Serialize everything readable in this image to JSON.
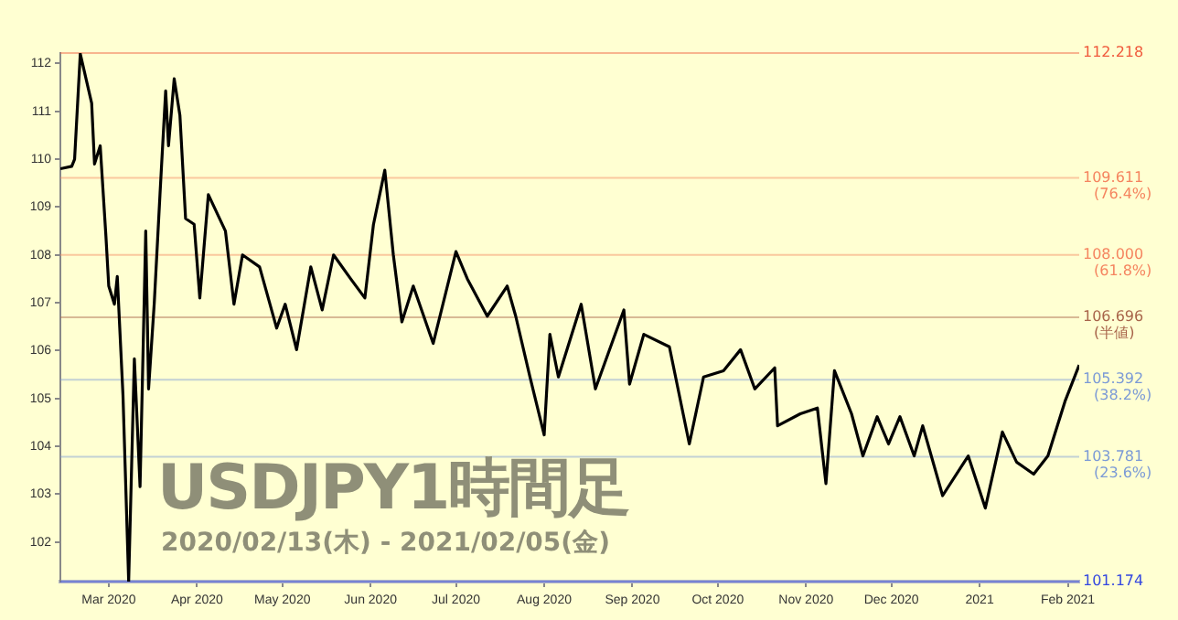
{
  "chart_data": {
    "type": "line",
    "title": "USDJPY1時間足",
    "subtitle": "2020/02/13(木) - 2021/02/05(金)",
    "x": [
      "2020-02-13",
      "2020-02-17",
      "2020-02-18",
      "2020-02-20",
      "2020-02-24",
      "2020-02-25",
      "2020-02-27",
      "2020-02-29",
      "2020-03-01",
      "2020-03-03",
      "2020-03-04",
      "2020-03-06",
      "2020-03-08",
      "2020-03-10",
      "2020-03-12",
      "2020-03-14",
      "2020-03-15",
      "2020-03-17",
      "2020-03-19",
      "2020-03-21",
      "2020-03-22",
      "2020-03-24",
      "2020-03-26",
      "2020-03-28",
      "2020-03-31",
      "2020-04-02",
      "2020-04-05",
      "2020-04-11",
      "2020-04-14",
      "2020-04-17",
      "2020-04-23",
      "2020-04-29",
      "2020-05-02",
      "2020-05-06",
      "2020-05-11",
      "2020-05-15",
      "2020-05-19",
      "2020-05-25",
      "2020-05-30",
      "2020-06-02",
      "2020-06-06",
      "2020-06-09",
      "2020-06-12",
      "2020-06-16",
      "2020-06-23",
      "2020-07-01",
      "2020-07-05",
      "2020-07-12",
      "2020-07-19",
      "2020-07-22",
      "2020-07-27",
      "2020-08-01",
      "2020-08-03",
      "2020-08-06",
      "2020-08-14",
      "2020-08-19",
      "2020-08-29",
      "2020-08-31",
      "2020-09-05",
      "2020-09-14",
      "2020-09-21",
      "2020-09-26",
      "2020-10-03",
      "2020-10-09",
      "2020-10-14",
      "2020-10-21",
      "2020-10-22",
      "2020-10-30",
      "2020-11-05",
      "2020-11-08",
      "2020-11-11",
      "2020-11-17",
      "2020-11-21",
      "2020-11-26",
      "2020-11-30",
      "2020-12-04",
      "2020-12-09",
      "2020-12-12",
      "2020-12-19",
      "2020-12-28",
      "2021-01-03",
      "2021-01-09",
      "2021-01-14",
      "2021-01-20",
      "2021-01-25",
      "2021-01-31",
      "2021-02-05"
    ],
    "series": [
      {
        "color": "#000000",
        "values": [
          109.8,
          109.85,
          110.0,
          112.2,
          111.17,
          109.9,
          110.28,
          108.4,
          107.35,
          106.97,
          107.55,
          105.07,
          101.174,
          105.83,
          103.16,
          108.5,
          105.2,
          107.0,
          109.26,
          111.43,
          110.28,
          111.68,
          110.92,
          108.76,
          108.64,
          107.1,
          109.26,
          108.5,
          106.97,
          108.0,
          107.75,
          106.47,
          106.97,
          106.02,
          107.75,
          106.85,
          108.0,
          107.5,
          107.1,
          108.63,
          109.77,
          108.0,
          106.6,
          107.35,
          106.15,
          108.07,
          107.5,
          106.72,
          107.35,
          106.72,
          105.45,
          104.24,
          106.34,
          105.45,
          106.97,
          105.2,
          106.85,
          105.3,
          106.34,
          106.08,
          104.05,
          105.45,
          105.58,
          106.02,
          105.2,
          105.64,
          104.43,
          104.68,
          104.8,
          103.22,
          105.58,
          104.68,
          103.8,
          104.62,
          104.05,
          104.62,
          103.8,
          104.43,
          102.97,
          103.8,
          102.71,
          104.3,
          103.67,
          103.42,
          103.8,
          104.94,
          105.7
        ]
      }
    ],
    "xlim": [
      "2020-02-13",
      "2021-02-05"
    ],
    "xticks": [
      {
        "value": "2020-03-01",
        "label": "Mar 2020"
      },
      {
        "value": "2020-04-01",
        "label": "Apr 2020"
      },
      {
        "value": "2020-05-01",
        "label": "May 2020"
      },
      {
        "value": "2020-06-01",
        "label": "Jun 2020"
      },
      {
        "value": "2020-07-01",
        "label": "Jul 2020"
      },
      {
        "value": "2020-08-01",
        "label": "Aug 2020"
      },
      {
        "value": "2020-09-01",
        "label": "Sep 2020"
      },
      {
        "value": "2020-10-01",
        "label": "Oct 2020"
      },
      {
        "value": "2020-11-01",
        "label": "Nov 2020"
      },
      {
        "value": "2020-12-01",
        "label": "Dec 2020"
      },
      {
        "value": "2021-01-01",
        "label": "2021"
      },
      {
        "value": "2021-02-01",
        "label": "Feb 2021"
      }
    ],
    "ylim": [
      101.174,
      112.218
    ],
    "yticks": [
      102,
      103,
      104,
      105,
      106,
      107,
      108,
      109,
      110,
      111,
      112
    ],
    "ref_lines": [
      {
        "axis": "y",
        "value": 112.218,
        "label": "112.218",
        "color": "#f05a3c"
      },
      {
        "axis": "y",
        "value": 109.611,
        "label": "109.611\n(76.4%)",
        "color": "#f5845f"
      },
      {
        "axis": "y",
        "value": 108.0,
        "label": "108.000\n(61.8%)",
        "color": "#f5845f"
      },
      {
        "axis": "y",
        "value": 106.696,
        "label": "106.696\n(半値)",
        "color": "#a8644a"
      },
      {
        "axis": "y",
        "value": 105.392,
        "label": "105.392\n(38.2%)",
        "color": "#7b9ad6"
      },
      {
        "axis": "y",
        "value": 103.781,
        "label": "103.781\n(23.6%)",
        "color": "#7b9ad6"
      },
      {
        "axis": "y",
        "value": 101.174,
        "label": "101.174",
        "color": "#3347e0"
      }
    ],
    "grid": false,
    "legend": false,
    "marker": "none",
    "line_style": "solid"
  }
}
